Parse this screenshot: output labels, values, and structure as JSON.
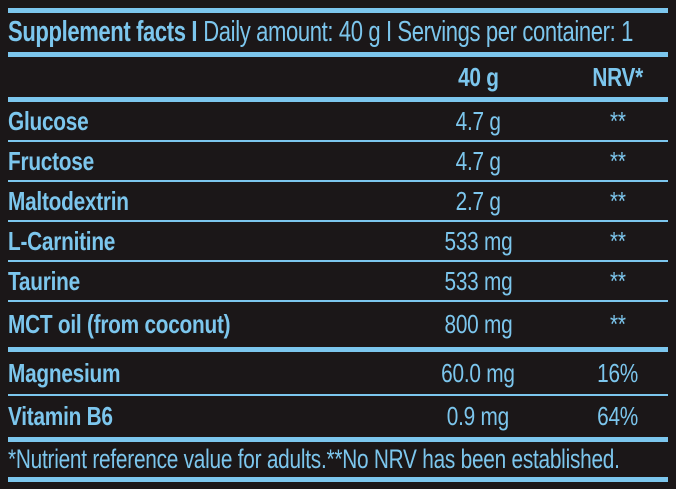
{
  "header": {
    "bold": "Supplement facts I",
    "regular": "Daily amount: 40 g I Servings per container: 1"
  },
  "columns": {
    "amount": "40 g",
    "nrv": "NRV*"
  },
  "rows": [
    {
      "name": "Glucose",
      "amount": "4.7 g",
      "nrv": "**"
    },
    {
      "name": "Fructose",
      "amount": "4.7 g",
      "nrv": "**"
    },
    {
      "name": "Maltodextrin",
      "amount": "2.7 g",
      "nrv": "**"
    },
    {
      "name": "L-Carnitine",
      "amount": "533 mg",
      "nrv": "**"
    },
    {
      "name": "Taurine",
      "amount": "533 mg",
      "nrv": "**"
    },
    {
      "name": "MCT oil (from coconut)",
      "amount": "800 mg",
      "nrv": "**"
    },
    {
      "name": "Magnesium",
      "amount": "60.0 mg",
      "nrv": "16%"
    },
    {
      "name": "Vitamin B6",
      "amount": "0.9 mg",
      "nrv": "64%"
    }
  ],
  "footnote": "*Nutrient reference value for adults.**No NRV has been established.",
  "colors": {
    "background": "#1b1718",
    "text": "#7cc6ed",
    "rule": "#7cc6ed"
  }
}
